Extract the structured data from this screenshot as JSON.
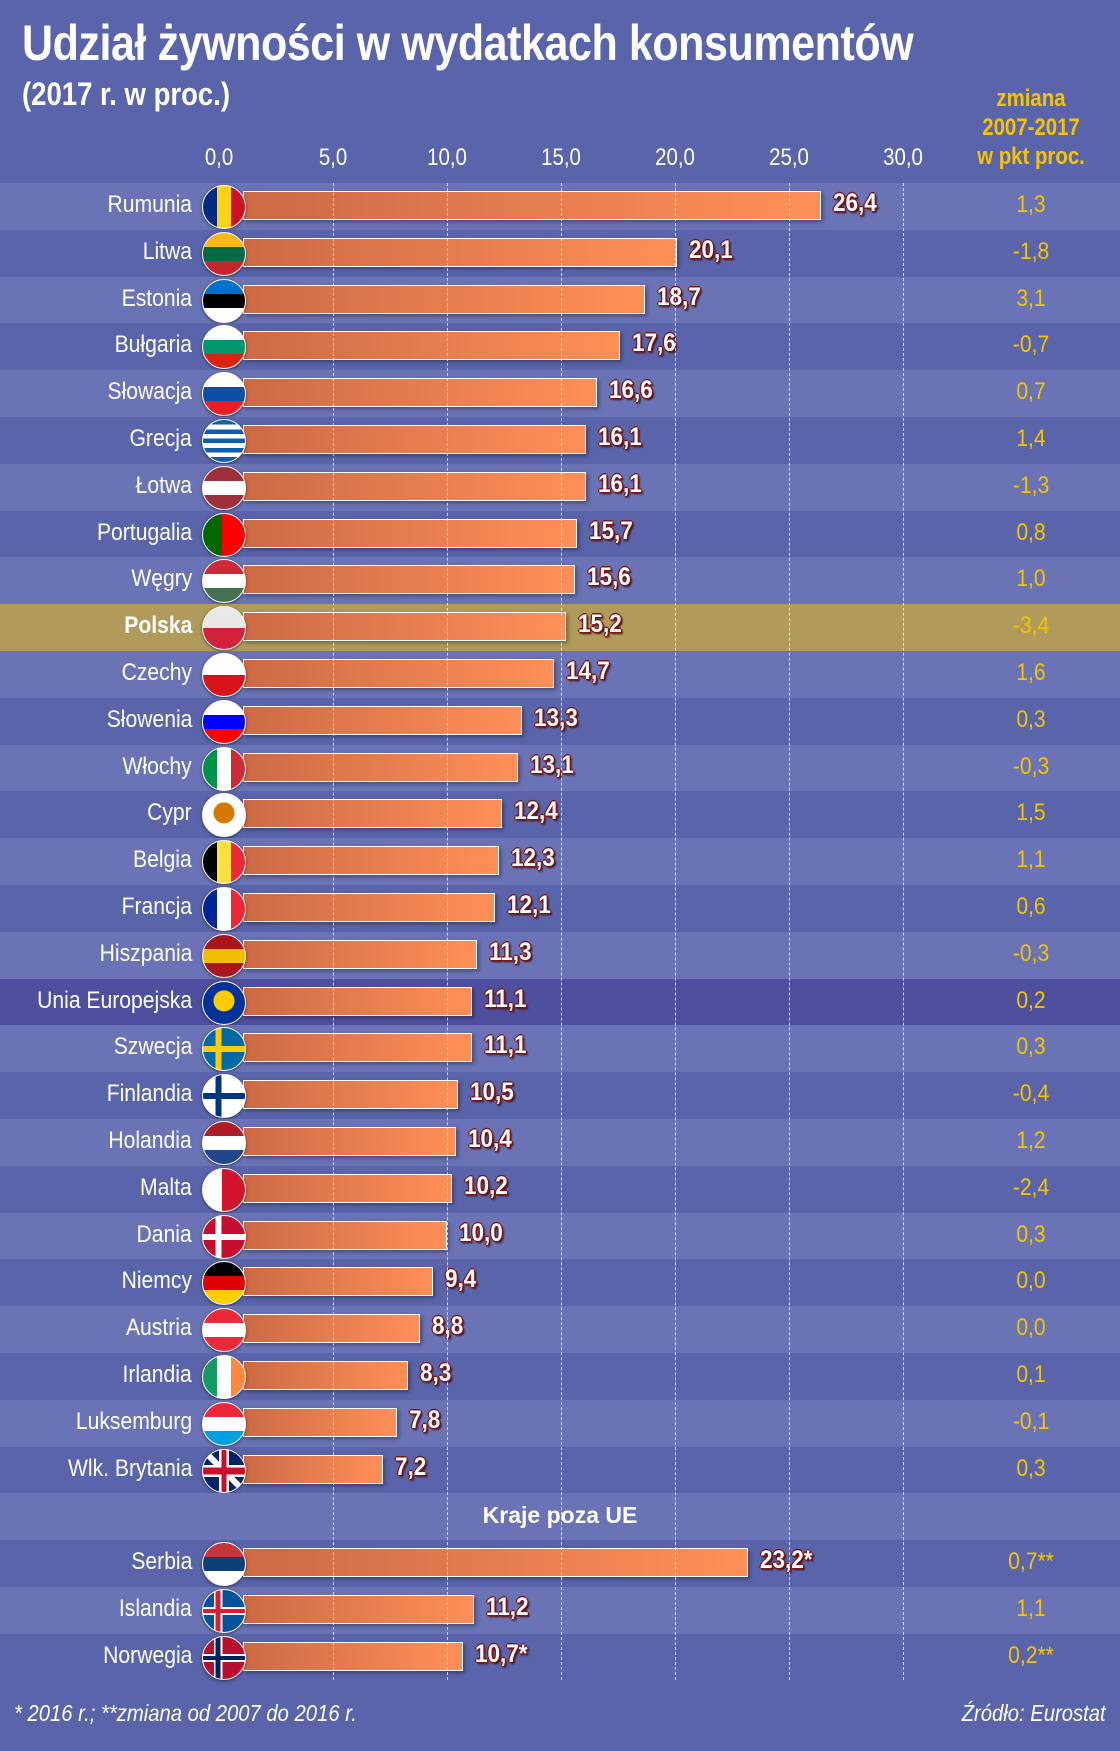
{
  "title": "Udział żywności w wydatkach konsumentów",
  "subtitle": "(2017 r. w proc.)",
  "change_header": [
    "zmiana",
    "2007-2017",
    "w pkt proc."
  ],
  "footnote": "* 2016 r.;  **zmiana od 2007 do 2016 r.",
  "source": "Źródło: Eurostat",
  "colors": {
    "bar": "#ff8f58",
    "change": "#f5c400",
    "highlight_pl": "#b09b5a",
    "highlight_eu": "#4f4fa0"
  },
  "chart_data": {
    "type": "bar",
    "title": "Udział żywności w wydatkach konsumentów",
    "xlim": [
      0,
      30
    ],
    "tick_labels": [
      "0,0",
      "5,0",
      "10,0",
      "15,0",
      "20,0",
      "25,0",
      "30,0"
    ],
    "section_label": "Kraje poza UE",
    "rows": [
      {
        "name": "Rumunia",
        "value": 26.4,
        "label": "26,4",
        "change": "1,3",
        "flag": [
          "v",
          "#002b7f",
          "#fcd116",
          "#ce1126"
        ]
      },
      {
        "name": "Litwa",
        "value": 20.1,
        "label": "20,1",
        "change": "-1,8",
        "flag": [
          "h",
          "#fdb913",
          "#006a44",
          "#c1272d"
        ]
      },
      {
        "name": "Estonia",
        "value": 18.7,
        "label": "18,7",
        "change": "3,1",
        "flag": [
          "h",
          "#0072ce",
          "#000000",
          "#ffffff"
        ]
      },
      {
        "name": "Bułgaria",
        "value": 17.6,
        "label": "17,6",
        "change": "-0,7",
        "flag": [
          "h",
          "#ffffff",
          "#00966e",
          "#d62612"
        ]
      },
      {
        "name": "Słowacja",
        "value": 16.6,
        "label": "16,6",
        "change": "0,7",
        "flag": [
          "h",
          "#ffffff",
          "#0b4ea2",
          "#ee1c25"
        ]
      },
      {
        "name": "Grecja",
        "value": 16.1,
        "label": "16,1",
        "change": "1,4",
        "flag": [
          "s",
          "#0d5eaf",
          "#ffffff"
        ]
      },
      {
        "name": "Łotwa",
        "value": 16.1,
        "label": "16,1",
        "change": "-1,3",
        "flag": [
          "h",
          "#9e3039",
          "#ffffff",
          "#9e3039"
        ]
      },
      {
        "name": "Portugalia",
        "value": 15.7,
        "label": "15,7",
        "change": "0,8",
        "flag": [
          "v2",
          "#006600",
          "#ff0000"
        ]
      },
      {
        "name": "Węgry",
        "value": 15.6,
        "label": "15,6",
        "change": "1,0",
        "flag": [
          "h",
          "#ce2939",
          "#ffffff",
          "#477050"
        ]
      },
      {
        "name": "Polska",
        "value": 15.2,
        "label": "15,2",
        "change": "-3,4",
        "flag": [
          "h2",
          "#e9e8e7",
          "#d4213d"
        ],
        "hl": "pl"
      },
      {
        "name": "Czechy",
        "value": 14.7,
        "label": "14,7",
        "change": "1,6",
        "flag": [
          "h2",
          "#ffffff",
          "#d7141a"
        ]
      },
      {
        "name": "Słowenia",
        "value": 13.3,
        "label": "13,3",
        "change": "0,3",
        "flag": [
          "h",
          "#ffffff",
          "#0000ff",
          "#ff0000"
        ]
      },
      {
        "name": "Włochy",
        "value": 13.1,
        "label": "13,1",
        "change": "-0,3",
        "flag": [
          "v",
          "#009246",
          "#ffffff",
          "#ce2b37"
        ]
      },
      {
        "name": "Cypr",
        "value": 12.4,
        "label": "12,4",
        "change": "1,5",
        "flag": [
          "c",
          "#ffffff",
          "#d57800"
        ]
      },
      {
        "name": "Belgia",
        "value": 12.3,
        "label": "12,3",
        "change": "1,1",
        "flag": [
          "v",
          "#000000",
          "#fae042",
          "#ed2939"
        ]
      },
      {
        "name": "Francja",
        "value": 12.1,
        "label": "12,1",
        "change": "0,6",
        "flag": [
          "v",
          "#002395",
          "#ffffff",
          "#ed2939"
        ]
      },
      {
        "name": "Hiszpania",
        "value": 11.3,
        "label": "11,3",
        "change": "-0,3",
        "flag": [
          "h",
          "#aa151b",
          "#f1bf00",
          "#aa151b"
        ]
      },
      {
        "name": "Unia Europejska",
        "value": 11.1,
        "label": "11,1",
        "change": "0,2",
        "flag": [
          "c",
          "#003399",
          "#ffcc00"
        ],
        "hl": "eu"
      },
      {
        "name": "Szwecja",
        "value": 11.1,
        "label": "11,1",
        "change": "0,3",
        "flag": [
          "x",
          "#006aa7",
          "#fecc00"
        ]
      },
      {
        "name": "Finlandia",
        "value": 10.5,
        "label": "10,5",
        "change": "-0,4",
        "flag": [
          "x",
          "#ffffff",
          "#003580"
        ]
      },
      {
        "name": "Holandia",
        "value": 10.4,
        "label": "10,4",
        "change": "1,2",
        "flag": [
          "h",
          "#ae1c28",
          "#ffffff",
          "#21468b"
        ]
      },
      {
        "name": "Malta",
        "value": 10.2,
        "label": "10,2",
        "change": "-2,4",
        "flag": [
          "v2",
          "#ffffff",
          "#cf142b"
        ]
      },
      {
        "name": "Dania",
        "value": 10.0,
        "label": "10,0",
        "change": "0,3",
        "flag": [
          "x",
          "#c60c30",
          "#ffffff"
        ]
      },
      {
        "name": "Niemcy",
        "value": 9.4,
        "label": "9,4",
        "change": "0,0",
        "flag": [
          "h",
          "#000000",
          "#dd0000",
          "#ffce00"
        ]
      },
      {
        "name": "Austria",
        "value": 8.8,
        "label": "8,8",
        "change": "0,0",
        "flag": [
          "h",
          "#ed2939",
          "#ffffff",
          "#ed2939"
        ]
      },
      {
        "name": "Irlandia",
        "value": 8.3,
        "label": "8,3",
        "change": "0,1",
        "flag": [
          "v",
          "#169b62",
          "#ffffff",
          "#ff883e"
        ]
      },
      {
        "name": "Luksemburg",
        "value": 7.8,
        "label": "7,8",
        "change": "-0,1",
        "flag": [
          "h",
          "#ed2939",
          "#ffffff",
          "#00a1de"
        ]
      },
      {
        "name": "Wlk. Brytania",
        "value": 7.2,
        "label": "7,2",
        "change": "0,3",
        "flag": [
          "u",
          "#012169",
          "#ffffff",
          "#c8102e"
        ]
      },
      {
        "section": true
      },
      {
        "name": "Serbia",
        "value": 23.2,
        "label": "23,2*",
        "change": "0,7**",
        "flag": [
          "h",
          "#c6363c",
          "#0c4076",
          "#ffffff"
        ]
      },
      {
        "name": "Islandia",
        "value": 11.2,
        "label": "11,2",
        "change": "1,1",
        "flag": [
          "xx",
          "#02529c",
          "#ffffff",
          "#dc1e35"
        ]
      },
      {
        "name": "Norwegia",
        "value": 10.7,
        "label": "10,7*",
        "change": "0,2**",
        "flag": [
          "xx",
          "#ba0c2f",
          "#ffffff",
          "#00205b"
        ]
      }
    ]
  }
}
